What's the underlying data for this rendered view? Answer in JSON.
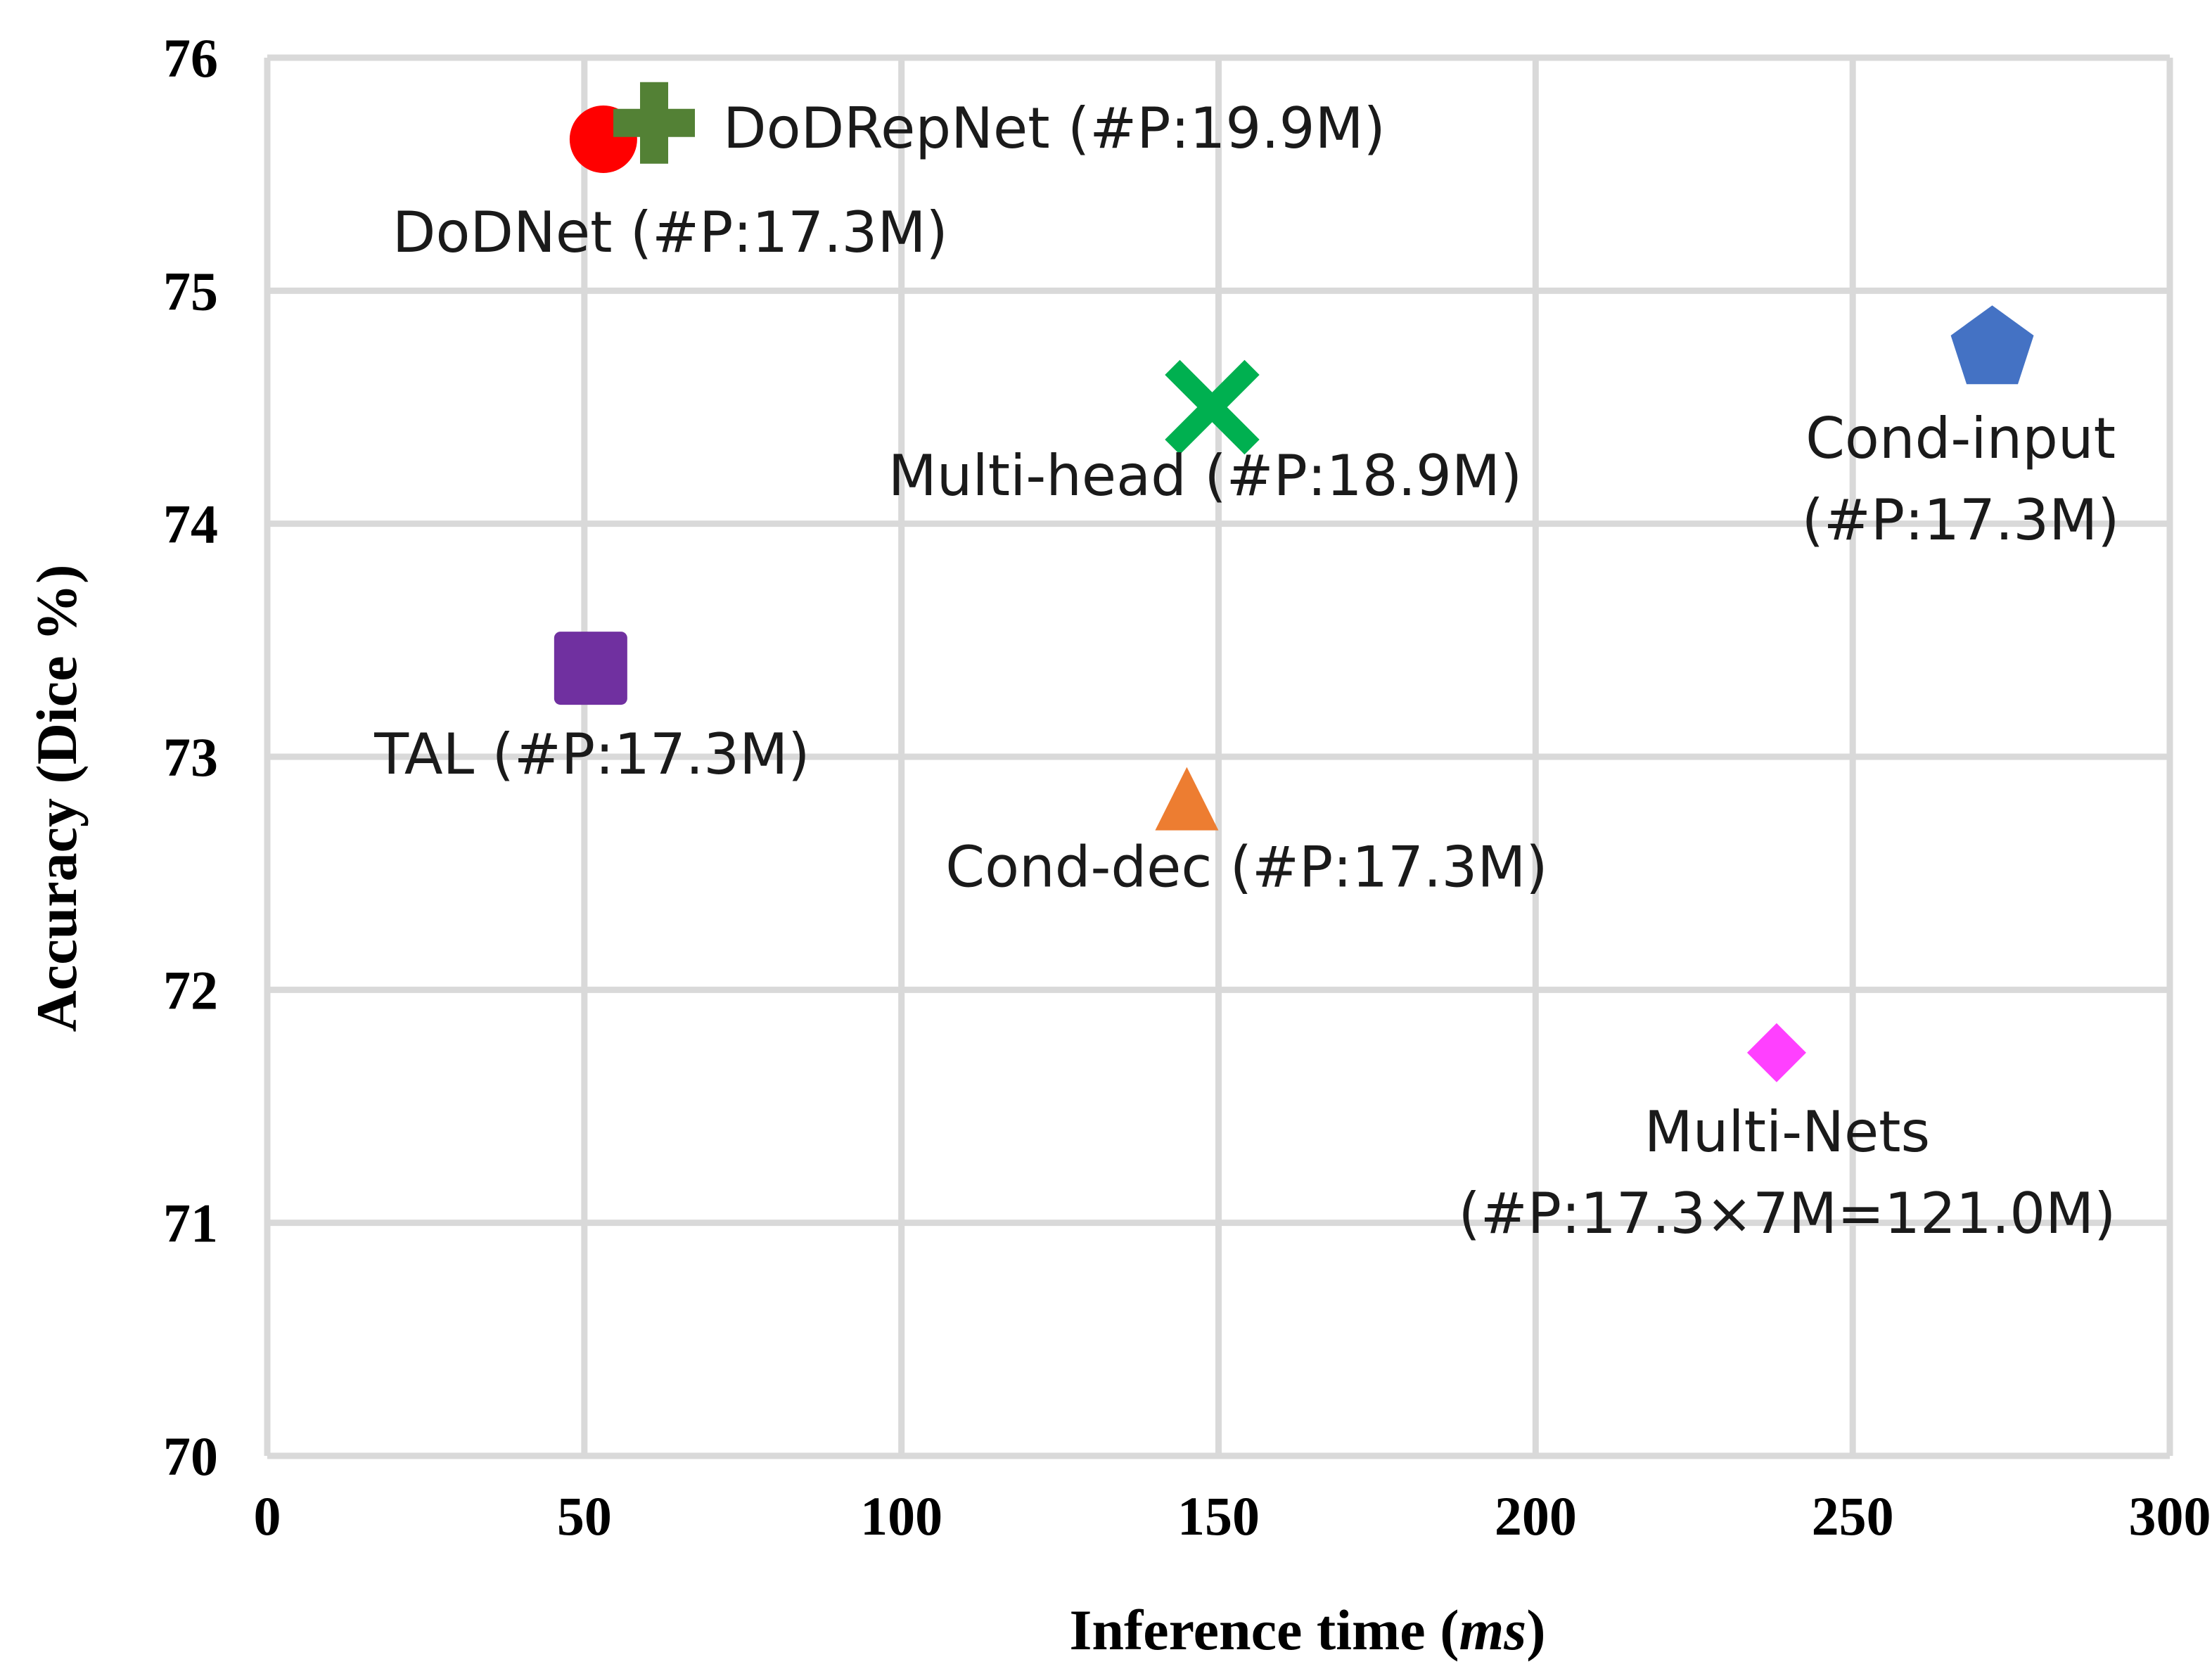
{
  "chart_data": {
    "type": "scatter",
    "title": "",
    "xlabel": "Inference time",
    "xlabel_unit": "ms",
    "ylabel": "Accuracy (Dice %)",
    "xlim": [
      0,
      300
    ],
    "ylim": [
      70,
      76
    ],
    "x_ticks": [
      0,
      50,
      100,
      150,
      200,
      250,
      300
    ],
    "y_ticks": [
      70,
      71,
      72,
      73,
      74,
      75,
      76
    ],
    "grid": true,
    "legend": "none",
    "points": [
      {
        "label": [
          "DoDNet (#P:17.3M)"
        ],
        "x": 53,
        "y": 75.65,
        "marker": "circle",
        "color": "#ff0000"
      },
      {
        "label": [
          "DoDRepNet (#P:19.9M)"
        ],
        "x": 61,
        "y": 75.72,
        "marker": "plus",
        "color": "#538135"
      },
      {
        "label": [
          "Multi-head (#P:18.9M)"
        ],
        "x": 149,
        "y": 74.5,
        "marker": "x",
        "color": "#00b050"
      },
      {
        "label": [
          "Cond-input",
          "(#P:17.3M)"
        ],
        "x": 272,
        "y": 74.75,
        "marker": "pentagon",
        "color": "#4472c4"
      },
      {
        "label": [
          "TAL (#P:17.3M)"
        ],
        "x": 51,
        "y": 73.38,
        "marker": "square",
        "color": "#7030a0"
      },
      {
        "label": [
          "Cond-dec (#P:17.3M)"
        ],
        "x": 145,
        "y": 72.82,
        "marker": "triangle",
        "color": "#ed7d31"
      },
      {
        "label": [
          "Multi-Nets",
          "(#P:17.3×7M=121.0M)"
        ],
        "x": 238,
        "y": 71.73,
        "marker": "diamond",
        "color": "#ff40ff"
      }
    ]
  }
}
